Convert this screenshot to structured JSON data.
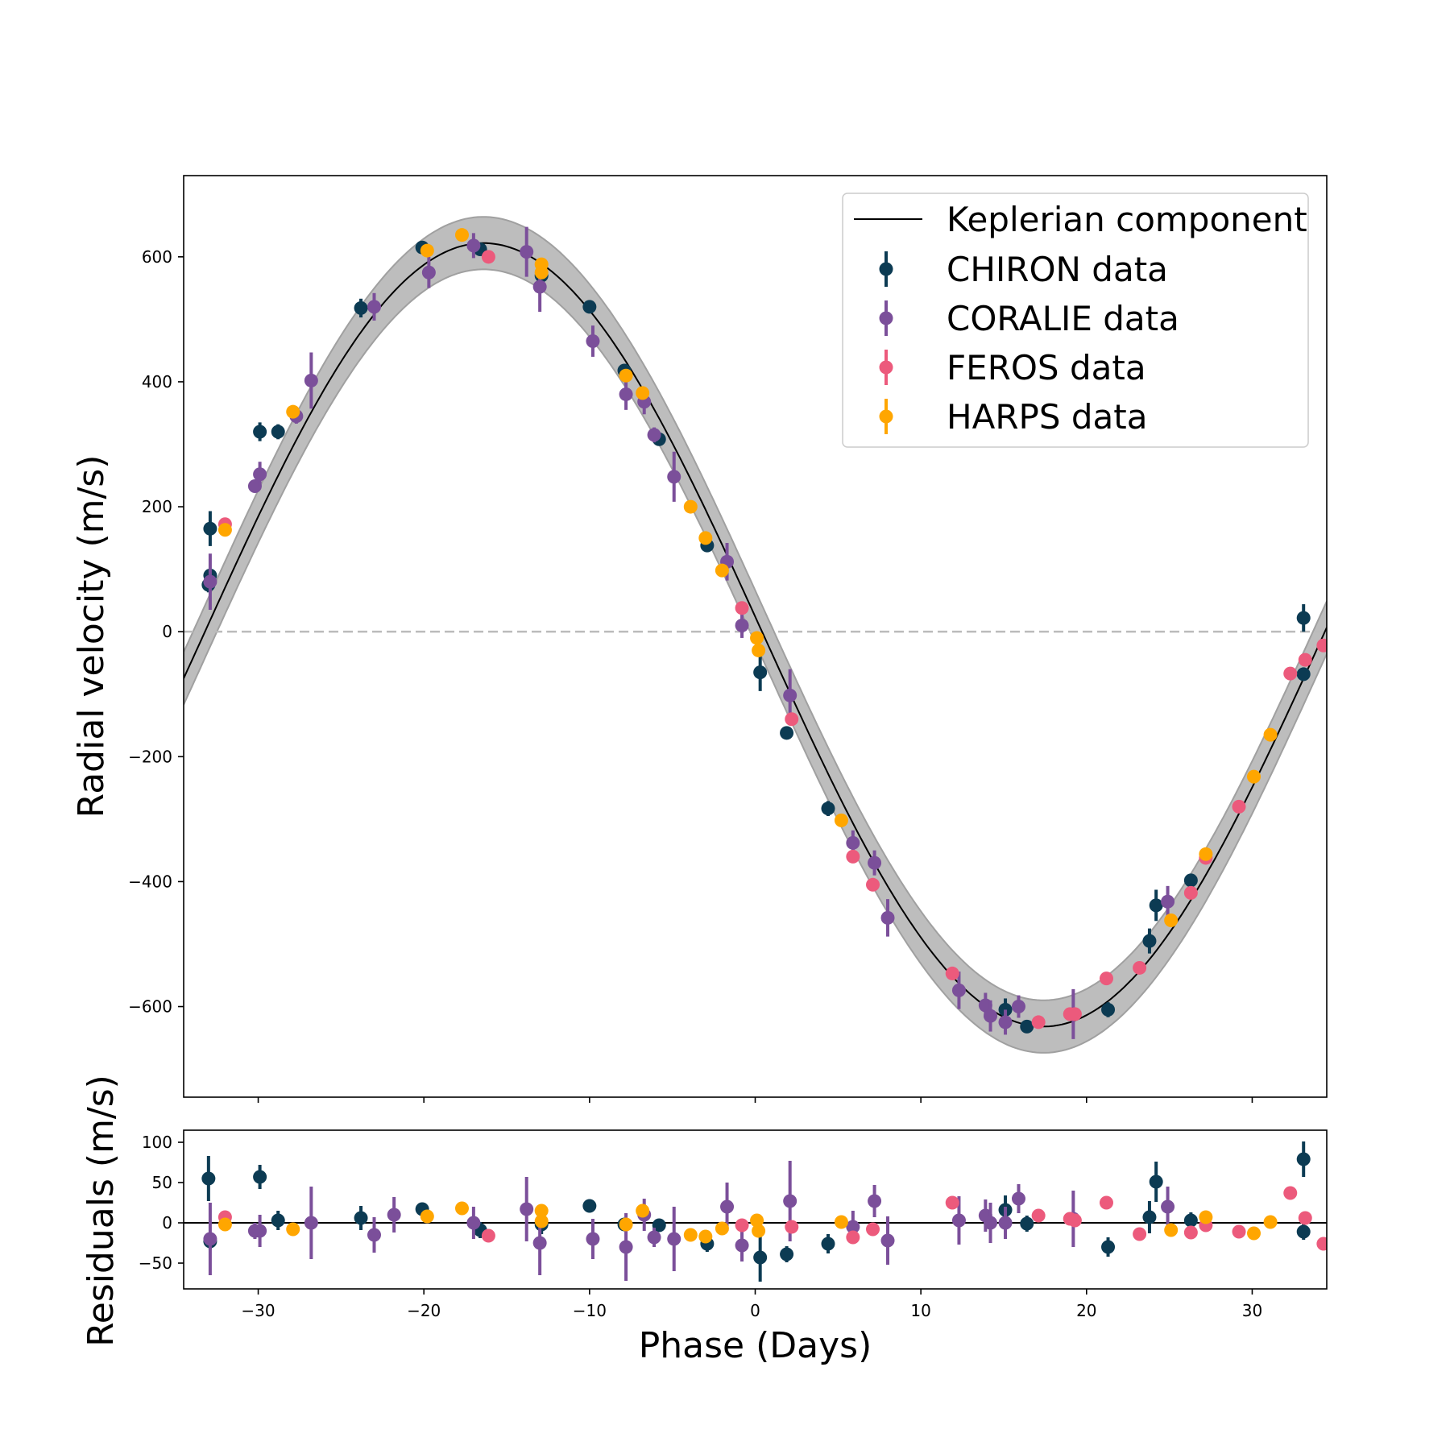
{
  "chart_data": [
    {
      "type": "scatter",
      "panel": "radial-velocity",
      "title": "",
      "xlabel": "Phase (Days)",
      "ylabel": "Radial velocity (m/s)",
      "xlim": [
        -34.5,
        34.5
      ],
      "ylim": [
        -745,
        730
      ],
      "xticks": [
        -30,
        -20,
        -10,
        0,
        10,
        20,
        30
      ],
      "yticks": [
        -600,
        -400,
        -200,
        0,
        200,
        400,
        600
      ],
      "ytick_labels": [
        "−600",
        "−400",
        "−200",
        "0",
        "200",
        "400",
        "600"
      ],
      "grid": false,
      "legend_position": "top-right",
      "zero_line": true,
      "model": {
        "name": "Keplerian component",
        "form": "sinusoid",
        "amplitude": 627,
        "offset": -5,
        "period_days": 67.6,
        "zero_crossing_days": 0.5,
        "band_halfwidth": 42
      },
      "series": [
        {
          "name": "CHIRON data",
          "color": "#0c3b53",
          "x": [
            -32.9,
            -33.0,
            -32.9,
            -29.9,
            -28.8,
            -23.8,
            -20.1,
            -16.6,
            -12.9,
            -10.0,
            -7.9,
            -5.8,
            -2.9,
            0.3,
            1.9,
            4.4,
            15.1,
            16.4,
            21.3,
            23.8,
            24.2,
            26.3,
            33.1,
            33.1
          ],
          "y": [
            165,
            75,
            90,
            320,
            320,
            518,
            615,
            612,
            570,
            520,
            418,
            308,
            138,
            -65,
            -162,
            -283,
            -605,
            -632,
            -605,
            -495,
            -438,
            -398,
            22,
            -68
          ],
          "err": [
            28,
            12,
            10,
            15,
            12,
            15,
            8,
            10,
            12,
            8,
            8,
            8,
            10,
            30,
            10,
            12,
            18,
            10,
            12,
            20,
            25,
            10,
            22,
            10
          ]
        },
        {
          "name": "CORALIE data",
          "color": "#7b4f9a",
          "x": [
            -32.9,
            -30.2,
            -29.9,
            -27.7,
            -26.8,
            -23.0,
            -19.7,
            -17.0,
            -13.8,
            -13.0,
            -9.8,
            -7.8,
            -6.7,
            -6.1,
            -4.9,
            -1.7,
            -0.8,
            2.1,
            5.9,
            7.2,
            8.0,
            12.3,
            13.9,
            14.2,
            15.1,
            15.9,
            19.2,
            24.9
          ],
          "y": [
            80,
            233,
            252,
            345,
            402,
            520,
            575,
            618,
            608,
            552,
            465,
            380,
            368,
            315,
            248,
            112,
            10,
            -102,
            -338,
            -370,
            -458,
            -574,
            -598,
            -615,
            -625,
            -600,
            -612,
            -432
          ],
          "err": [
            45,
            10,
            20,
            12,
            45,
            22,
            25,
            20,
            40,
            40,
            25,
            25,
            20,
            12,
            40,
            30,
            20,
            42,
            20,
            20,
            30,
            30,
            20,
            25,
            20,
            18,
            40,
            25
          ]
        },
        {
          "name": "FEROS data",
          "color": "#ec5a7c",
          "x": [
            -32.0,
            -16.1,
            -0.8,
            2.2,
            5.9,
            7.1,
            11.9,
            17.1,
            19.0,
            19.3,
            21.2,
            23.2,
            26.3,
            27.2,
            29.2,
            32.3,
            33.2,
            34.3
          ],
          "y": [
            172,
            600,
            38,
            -140,
            -360,
            -405,
            -547,
            -625,
            -612,
            -612,
            -555,
            -538,
            -418,
            -362,
            -280,
            -67,
            -45,
            -22
          ],
          "err": [
            5,
            5,
            5,
            5,
            5,
            5,
            5,
            5,
            5,
            5,
            5,
            5,
            5,
            5,
            5,
            5,
            5,
            5
          ]
        },
        {
          "name": "HARPS data",
          "color": "#ffa600",
          "x": [
            -32.0,
            -27.9,
            -19.8,
            -17.7,
            -12.9,
            -12.9,
            -7.8,
            -6.8,
            -3.9,
            -3.0,
            -2.0,
            0.1,
            0.2,
            5.2,
            25.1,
            27.2,
            30.1,
            31.1
          ],
          "y": [
            163,
            352,
            610,
            635,
            588,
            575,
            410,
            382,
            200,
            150,
            98,
            -10,
            -30,
            -302,
            -462,
            -356,
            -232,
            -165
          ],
          "err": [
            5,
            5,
            5,
            5,
            5,
            5,
            5,
            5,
            5,
            5,
            5,
            5,
            5,
            5,
            5,
            5,
            5,
            5
          ]
        }
      ]
    },
    {
      "type": "scatter",
      "panel": "residuals",
      "title": "",
      "xlabel": "Phase (Days)",
      "ylabel": "Residuals (m/s)",
      "xlim": [
        -34.5,
        34.5
      ],
      "ylim": [
        -82,
        115
      ],
      "xticks": [
        -30,
        -20,
        -10,
        0,
        10,
        20,
        30
      ],
      "xtick_labels": [
        "−30",
        "−20",
        "−10",
        "0",
        "10",
        "20",
        "30"
      ],
      "yticks": [
        -50,
        0,
        50,
        100
      ],
      "ytick_labels": [
        "−50",
        "0",
        "50",
        "100"
      ],
      "grid": false,
      "zero_line": true,
      "series": [
        {
          "name": "CHIRON data",
          "color": "#0c3b53",
          "x": [
            -33.0,
            -32.9,
            -29.9,
            -28.8,
            -23.8,
            -20.1,
            -16.6,
            -12.9,
            -10.0,
            -7.9,
            -5.8,
            -2.9,
            0.3,
            1.9,
            4.4,
            15.1,
            16.4,
            21.3,
            23.8,
            24.2,
            26.3,
            33.1,
            33.1
          ],
          "y": [
            55,
            -23,
            57,
            3,
            6,
            17,
            -9,
            -2,
            21,
            -2,
            -3,
            -26,
            -43,
            -39,
            -26,
            16,
            -1,
            -30,
            7,
            51,
            3,
            79,
            -11
          ],
          "err": [
            28,
            10,
            15,
            12,
            15,
            8,
            10,
            12,
            8,
            8,
            8,
            10,
            30,
            10,
            12,
            18,
            10,
            12,
            20,
            25,
            10,
            22,
            10
          ]
        },
        {
          "name": "CORALIE data",
          "color": "#7b4f9a",
          "x": [
            -32.9,
            -30.2,
            -29.9,
            -26.8,
            -23.0,
            -21.8,
            -17.0,
            -13.8,
            -13.0,
            -9.8,
            -7.8,
            -6.7,
            -6.1,
            -4.9,
            -1.7,
            -0.8,
            2.1,
            5.9,
            7.2,
            8.0,
            12.3,
            13.9,
            14.2,
            15.1,
            15.9,
            19.2,
            24.9
          ],
          "y": [
            -20,
            -10,
            -10,
            0,
            -15,
            10,
            0,
            17,
            -25,
            -20,
            -30,
            10,
            -18,
            -20,
            20,
            -28,
            27,
            -5,
            27,
            -22,
            3,
            9,
            0,
            0,
            30,
            5,
            20
          ],
          "err": [
            45,
            10,
            20,
            45,
            22,
            22,
            20,
            40,
            40,
            25,
            42,
            20,
            12,
            40,
            30,
            20,
            50,
            20,
            20,
            30,
            30,
            20,
            25,
            20,
            18,
            35,
            25
          ]
        },
        {
          "name": "FEROS data",
          "color": "#ec5a7c",
          "x": [
            -32.0,
            -16.1,
            -0.8,
            2.2,
            5.9,
            7.1,
            11.9,
            17.1,
            19.0,
            19.3,
            21.2,
            23.2,
            26.3,
            27.2,
            29.2,
            32.3,
            33.2,
            34.3
          ],
          "y": [
            7,
            -16,
            -3,
            -5,
            -18,
            -8,
            25,
            9,
            5,
            3,
            25,
            -14,
            -12,
            -3,
            -11,
            37,
            6,
            -26
          ],
          "err": [
            5,
            5,
            5,
            5,
            5,
            5,
            5,
            5,
            5,
            5,
            5,
            5,
            5,
            5,
            5,
            5,
            5,
            5
          ]
        },
        {
          "name": "HARPS data",
          "color": "#ffa600",
          "x": [
            -32.0,
            -27.9,
            -19.8,
            -17.7,
            -12.9,
            -12.9,
            -7.8,
            -6.8,
            -3.9,
            -3.0,
            -2.0,
            0.1,
            0.2,
            5.2,
            25.1,
            27.2,
            30.1,
            31.1
          ],
          "y": [
            -2,
            -8,
            8,
            18,
            15,
            2,
            -2,
            15,
            -15,
            -17,
            -7,
            3,
            -10,
            1,
            -9,
            7,
            -13,
            1
          ],
          "err": [
            5,
            5,
            5,
            5,
            5,
            5,
            5,
            5,
            5,
            5,
            5,
            5,
            5,
            5,
            5,
            5,
            5,
            5
          ]
        }
      ]
    }
  ]
}
